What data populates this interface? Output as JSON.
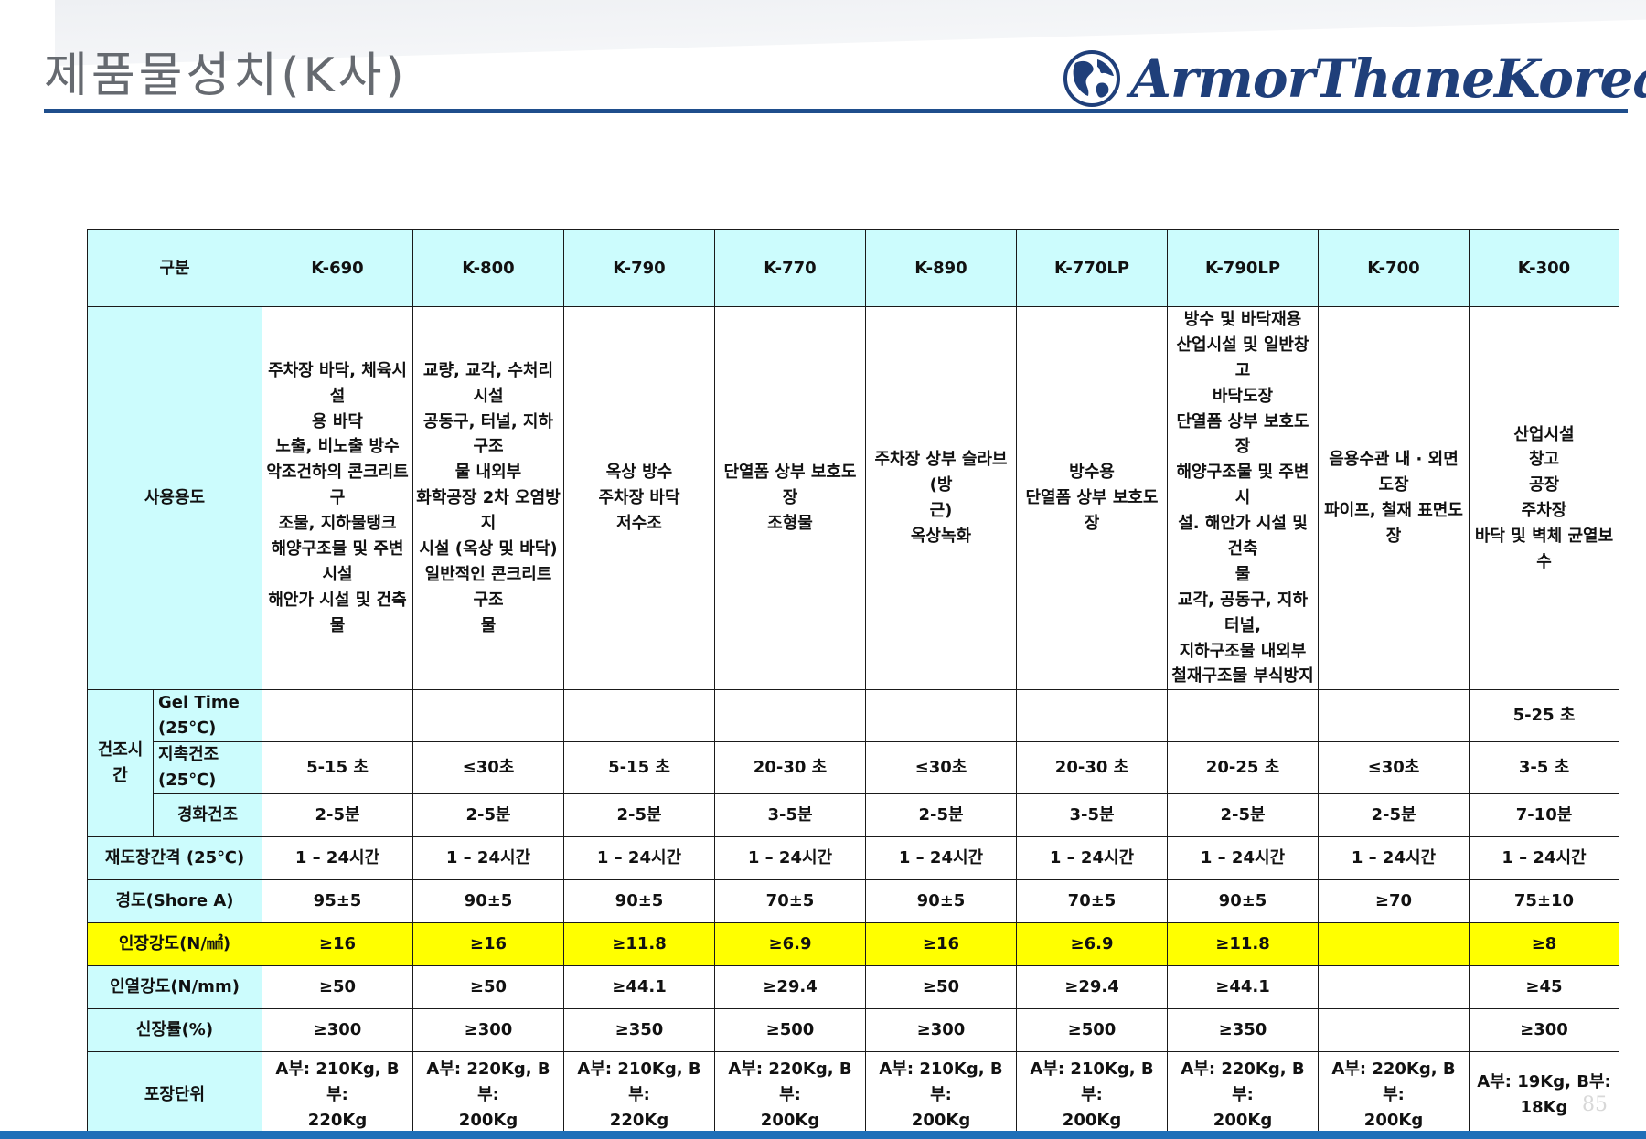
{
  "page_title": "제품물성치(K사)",
  "logo": {
    "text": "ArmorThaneKorea",
    "icon": "globe-icon",
    "color": "#1f3f7a"
  },
  "page_number": "85",
  "colors": {
    "header_bg": "#ccfcfd",
    "highlight_row": "#ffff00",
    "accent_rule": "#1f4e8c",
    "bottom_bar": "#1f6fb8"
  },
  "table": {
    "corner_label": "구분",
    "products": [
      "K-690",
      "K-800",
      "K-790",
      "K-770",
      "K-890",
      "K-770LP",
      "K-790LP",
      "K-700",
      "K-300"
    ],
    "usage": {
      "label": "사용용도",
      "values": [
        "주차장 바닥, 체육시설\n용 바닥\n노출, 비노출 방수\n악조건하의 콘크리트 구\n조물, 지하물탱크\n해양구조물 및 주변시설\n해안가 시설 및 건축물",
        "교량, 교각, 수처리시설\n공동구, 터널, 지하구조\n물 내외부\n화학공장 2차 오염방지\n시설 (옥상 및 바닥)\n일반적인 콘크리트 구조\n물",
        "옥상 방수\n주차장 바닥\n저수조",
        "단열폼 상부 보호도장\n조형물",
        "주차장 상부 슬라브(방\n근)\n옥상녹화",
        "방수용\n단열폼 상부 보호도장",
        "방수 및 바닥재용\n산업시설 및 일반창고\n바닥도장\n단열폼 상부 보호도장\n해양구조물 및 주변시\n설. 해안가 시설 및 건축\n물\n교각, 공동구, 지하터널,\n지하구조물 내외부\n철재구조물 부식방지",
        "음용수관 내 · 외면도장\n파이프, 철재 표면도장",
        "산업시설\n창고\n공장\n주차장\n바닥 및 벽체 균열보수"
      ]
    },
    "drying": {
      "group_label": "건조시간",
      "rows": [
        {
          "label": "Gel Time (25℃)",
          "values": [
            "",
            "",
            "",
            "",
            "",
            "",
            "",
            "",
            "5-25 초"
          ]
        },
        {
          "label": "지촉건조 (25℃)",
          "values": [
            "5-15 초",
            "≤30초",
            "5-15 초",
            "20-30 초",
            "≤30초",
            "20-30 초",
            "20-25 초",
            "≤30초",
            "3-5 초"
          ]
        },
        {
          "label": "경화건조",
          "values": [
            "2-5분",
            "2-5분",
            "2-5분",
            "3-5분",
            "2-5분",
            "3-5분",
            "2-5분",
            "2-5분",
            "7-10분"
          ]
        }
      ]
    },
    "recoat": {
      "label": "재도장간격 (25℃)",
      "values": [
        "1 – 24시간",
        "1 – 24시간",
        "1 – 24시간",
        "1 – 24시간",
        "1 – 24시간",
        "1 – 24시간",
        "1 – 24시간",
        "1 – 24시간",
        "1 – 24시간"
      ]
    },
    "hardness": {
      "label": "경도(Shore A)",
      "values": [
        "95±5",
        "90±5",
        "90±5",
        "70±5",
        "90±5",
        "70±5",
        "90±5",
        "≥70",
        "75±10"
      ]
    },
    "tensile": {
      "label": "인장강도(N/㎟)",
      "values": [
        "≥16",
        "≥16",
        "≥11.8",
        "≥6.9",
        "≥16",
        "≥6.9",
        "≥11.8",
        "",
        "≥8"
      ]
    },
    "tear": {
      "label": "인열강도(N/mm)",
      "values": [
        "≥50",
        "≥50",
        "≥44.1",
        "≥29.4",
        "≥50",
        "≥29.4",
        "≥44.1",
        "",
        "≥45"
      ]
    },
    "elongation": {
      "label": "신장률(%)",
      "values": [
        "≥300",
        "≥300",
        "≥350",
        "≥500",
        "≥300",
        "≥500",
        "≥350",
        "",
        "≥300"
      ]
    },
    "packaging": {
      "label": "포장단위",
      "values": [
        "A부: 210Kg, B부:\n220Kg",
        "A부: 220Kg, B부:\n200Kg",
        "A부: 210Kg, B부:\n220Kg",
        "A부: 220Kg, B부:\n200Kg",
        "A부: 210Kg, B부:\n200Kg",
        "A부: 210Kg, B부:\n200Kg",
        "A부: 220Kg, B부:\n200Kg",
        "A부: 220Kg, B부:\n200Kg",
        "A부: 19Kg, B부: 18Kg"
      ]
    }
  }
}
